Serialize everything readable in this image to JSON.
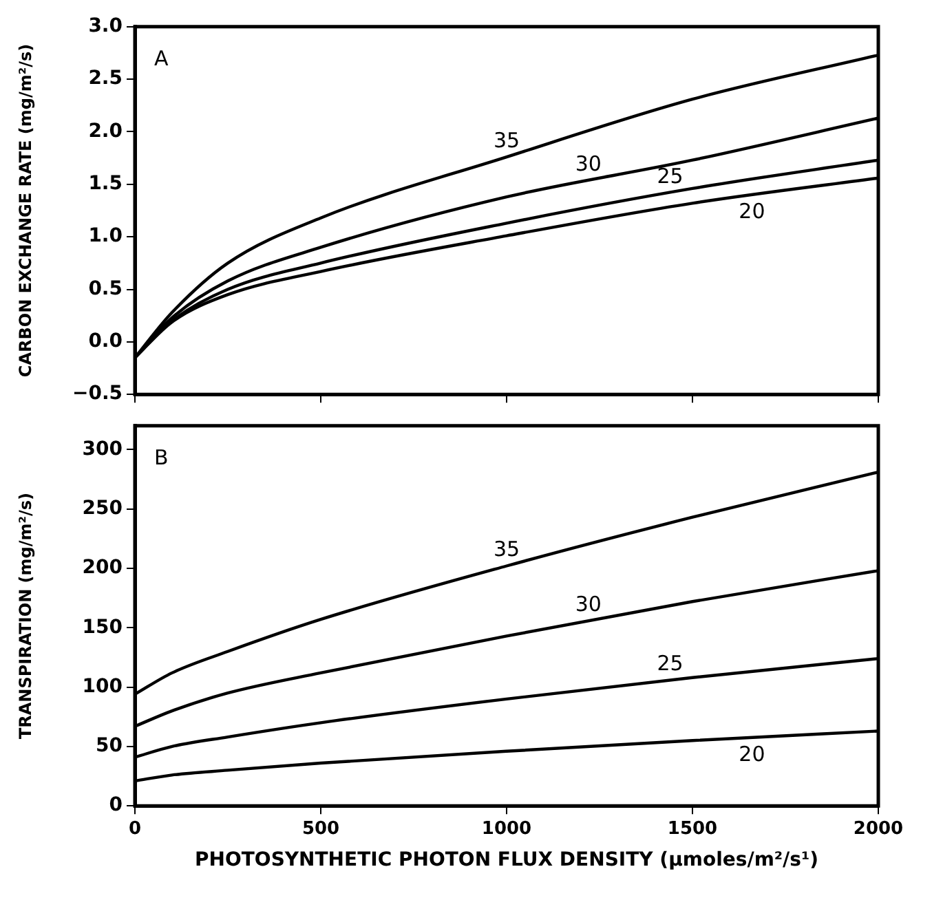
{
  "chart_data": [
    {
      "type": "line",
      "annotations": [
        "A"
      ],
      "ylabel": "CARBON EXCHANGE RATE (mg/m²/s)",
      "x": [
        0,
        100,
        250,
        500,
        1000,
        1500,
        2000
      ],
      "xlim": [
        0,
        2000
      ],
      "xticks": [
        0,
        500,
        1000,
        1500,
        2000
      ],
      "ylim": [
        -0.5,
        3.0
      ],
      "yticks": [
        {
          "value": -0.5,
          "label": "−0.5"
        },
        {
          "value": 0,
          "label": "0.0"
        },
        0.5,
        {
          "value": 1,
          "label": "1.0"
        },
        1.5,
        {
          "value": 2,
          "label": "2.0"
        },
        2.5,
        {
          "value": 3,
          "label": "3.0"
        }
      ],
      "tick_labels": "y",
      "grid": false,
      "legend": false,
      "marker": "none",
      "line_style": "solid",
      "series": [
        {
          "name": "35",
          "color": "#000000",
          "values": [
            -0.15,
            0.28,
            0.75,
            1.18,
            1.76,
            2.31,
            2.73
          ]
        },
        {
          "name": "30",
          "color": "#000000",
          "values": [
            -0.15,
            0.23,
            0.58,
            0.9,
            1.38,
            1.73,
            2.13
          ]
        },
        {
          "name": "25",
          "color": "#000000",
          "values": [
            -0.15,
            0.2,
            0.5,
            0.75,
            1.13,
            1.46,
            1.73
          ]
        },
        {
          "name": "20",
          "color": "#000000",
          "values": [
            -0.15,
            0.19,
            0.45,
            0.67,
            1.01,
            1.32,
            1.56
          ]
        }
      ]
    },
    {
      "type": "line",
      "annotations": [
        "B"
      ],
      "ylabel": "TRANSPIRATION (mg/m²/s)",
      "xlabel": "PHOTOSYNTHETIC PHOTON FLUX DENSITY (µmoles/m²/s¹)",
      "x": [
        0,
        100,
        250,
        500,
        1000,
        1500,
        2000
      ],
      "xlim": [
        0,
        2000
      ],
      "xticks": [
        0,
        500,
        1000,
        1500,
        2000
      ],
      "ylim": [
        0,
        320
      ],
      "yticks": [
        0,
        50,
        100,
        150,
        200,
        250,
        300
      ],
      "grid": false,
      "legend": false,
      "marker": "none",
      "line_style": "solid",
      "series": [
        {
          "name": "35",
          "color": "#000000",
          "values": [
            94,
            112,
            130,
            157,
            202,
            243,
            281
          ]
        },
        {
          "name": "30",
          "color": "#000000",
          "values": [
            67,
            80,
            95,
            112,
            143,
            172,
            198
          ]
        },
        {
          "name": "25",
          "color": "#000000",
          "values": [
            41,
            50,
            58,
            70,
            90,
            108,
            124
          ]
        },
        {
          "name": "20",
          "color": "#000000",
          "values": [
            21,
            26,
            30,
            36,
            46,
            55,
            63
          ]
        }
      ]
    }
  ]
}
